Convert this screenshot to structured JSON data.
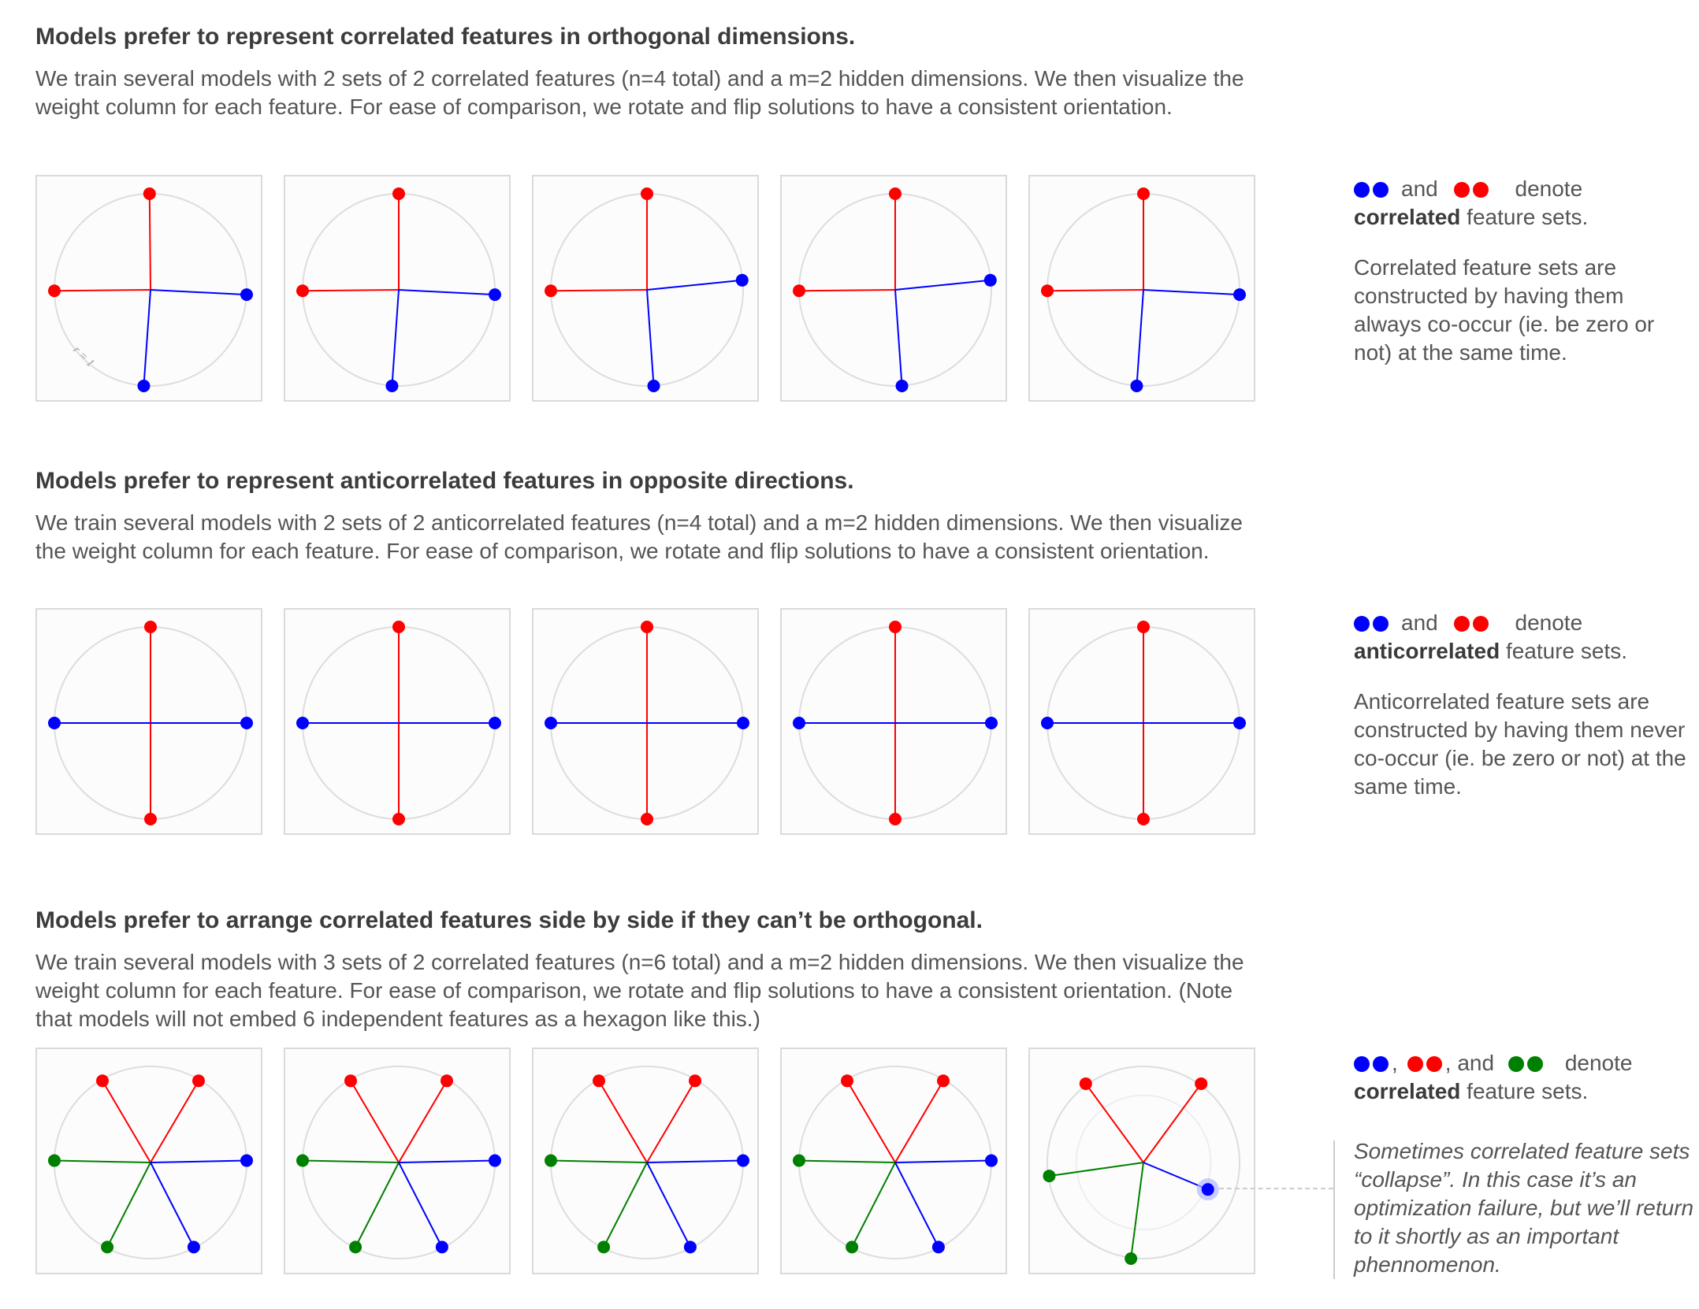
{
  "colors": {
    "blue": "#0000ff",
    "red": "#ff0000",
    "green": "#008000",
    "circle": "#dddddd"
  },
  "sections": [
    {
      "title": "Models prefer to represent correlated features in orthogonal dimensions.",
      "description": "We train several models with 2 sets of 2 correlated features (n=4 total) and a m=2 hidden dimensions. We then visualize the weight column for each feature. For ease of comparison, we rotate and flip solutions to have a consistent orientation.",
      "circle_label": "r = 1",
      "note": {
        "sep1": "and",
        "sep2": "denote",
        "bold": "correlated",
        "rest": " feature sets.",
        "paragraph": "Correlated feature sets are constructed by having them always co-occur (ie. be zero or not) at the same time."
      }
    },
    {
      "title": "Models prefer to represent anticorrelated features in opposite directions.",
      "description": "We train several models with 2 sets of 2 anticorrelated features (n=4 total) and a m=2 hidden dimensions. We then visualize the weight column for each feature. For ease of comparison, we rotate and flip solutions to have a consistent orientation.",
      "note": {
        "sep1": "and",
        "sep2": "denote",
        "bold": "anticorrelated",
        "rest": " feature sets.",
        "paragraph": "Anticorrelated feature sets are constructed by having them never co-occur (ie. be zero or not) at the same time."
      }
    },
    {
      "title": "Models prefer to arrange correlated features side by side if they can’t be orthogonal.",
      "description": "We train several models with 3 sets of 2 correlated features (n=6 total) and a m=2 hidden dimensions. We then visualize the weight column for each feature. For ease of comparison, we rotate and flip solutions to have a consistent orientation. (Note that models will not embed 6 independent features as a hexagon like this.)",
      "note": {
        "sep0": ",",
        "sep1": ", and",
        "sep2": "denote",
        "bold": "correlated",
        "rest": " feature sets.",
        "italic": "Sometimes correlated feature sets “collapse”. In this case it’s an optimization failure, but we’ll return to it shortly as an important phennomenon."
      }
    }
  ],
  "chart_data": [
    {
      "type": "scatter",
      "description_of": "section 1: 5 models, feature weight vectors in 2D, unit circle",
      "models": [
        [
          {
            "set": "red",
            "v": [
              -0.01,
              1.0
            ]
          },
          {
            "set": "red",
            "v": [
              -1.0,
              -0.01
            ]
          },
          {
            "set": "blue",
            "v": [
              1.0,
              -0.05
            ]
          },
          {
            "set": "blue",
            "v": [
              -0.07,
              -1.0
            ]
          }
        ],
        [
          {
            "set": "red",
            "v": [
              0.0,
              1.0
            ]
          },
          {
            "set": "red",
            "v": [
              -1.0,
              -0.01
            ]
          },
          {
            "set": "blue",
            "v": [
              1.0,
              -0.05
            ]
          },
          {
            "set": "blue",
            "v": [
              -0.07,
              -1.0
            ]
          }
        ],
        [
          {
            "set": "red",
            "v": [
              0.0,
              1.0
            ]
          },
          {
            "set": "red",
            "v": [
              -1.0,
              -0.01
            ]
          },
          {
            "set": "blue",
            "v": [
              0.99,
              0.1
            ]
          },
          {
            "set": "blue",
            "v": [
              0.07,
              -1.0
            ]
          }
        ],
        [
          {
            "set": "red",
            "v": [
              0.0,
              1.0
            ]
          },
          {
            "set": "red",
            "v": [
              -1.0,
              -0.01
            ]
          },
          {
            "set": "blue",
            "v": [
              0.99,
              0.1
            ]
          },
          {
            "set": "blue",
            "v": [
              0.07,
              -1.0
            ]
          }
        ],
        [
          {
            "set": "red",
            "v": [
              0.0,
              1.0
            ]
          },
          {
            "set": "red",
            "v": [
              -1.0,
              -0.01
            ]
          },
          {
            "set": "blue",
            "v": [
              1.0,
              -0.05
            ]
          },
          {
            "set": "blue",
            "v": [
              -0.07,
              -1.0
            ]
          }
        ]
      ]
    },
    {
      "type": "scatter",
      "description_of": "section 2: 5 models, anticorrelated features",
      "models": [
        [
          {
            "set": "red",
            "v": [
              0.0,
              1.0
            ]
          },
          {
            "set": "red",
            "v": [
              0.0,
              -1.0
            ]
          },
          {
            "set": "blue",
            "v": [
              -1.0,
              0.0
            ]
          },
          {
            "set": "blue",
            "v": [
              1.0,
              0.0
            ]
          }
        ],
        [
          {
            "set": "red",
            "v": [
              0.0,
              1.0
            ]
          },
          {
            "set": "red",
            "v": [
              0.0,
              -1.0
            ]
          },
          {
            "set": "blue",
            "v": [
              -1.0,
              0.0
            ]
          },
          {
            "set": "blue",
            "v": [
              1.0,
              0.0
            ]
          }
        ],
        [
          {
            "set": "red",
            "v": [
              0.0,
              1.0
            ]
          },
          {
            "set": "red",
            "v": [
              0.0,
              -1.0
            ]
          },
          {
            "set": "blue",
            "v": [
              -1.0,
              0.0
            ]
          },
          {
            "set": "blue",
            "v": [
              1.0,
              0.0
            ]
          }
        ],
        [
          {
            "set": "red",
            "v": [
              0.0,
              1.0
            ]
          },
          {
            "set": "red",
            "v": [
              0.0,
              -1.0
            ]
          },
          {
            "set": "blue",
            "v": [
              -1.0,
              0.0
            ]
          },
          {
            "set": "blue",
            "v": [
              1.0,
              0.0
            ]
          }
        ],
        [
          {
            "set": "red",
            "v": [
              0.0,
              1.0
            ]
          },
          {
            "set": "red",
            "v": [
              0.0,
              -1.0
            ]
          },
          {
            "set": "blue",
            "v": [
              -1.0,
              0.0
            ]
          },
          {
            "set": "blue",
            "v": [
              1.0,
              0.0
            ]
          }
        ]
      ]
    },
    {
      "type": "scatter",
      "description_of": "section 3: 5 models, 3 correlated sets",
      "models": [
        [
          {
            "set": "red",
            "v": [
              -0.5,
              0.85
            ]
          },
          {
            "set": "red",
            "v": [
              0.5,
              0.85
            ]
          },
          {
            "set": "green",
            "v": [
              -1.0,
              0.02
            ]
          },
          {
            "set": "green",
            "v": [
              -0.45,
              -0.88
            ]
          },
          {
            "set": "blue",
            "v": [
              1.0,
              0.02
            ]
          },
          {
            "set": "blue",
            "v": [
              0.45,
              -0.88
            ]
          }
        ],
        [
          {
            "set": "red",
            "v": [
              -0.5,
              0.85
            ]
          },
          {
            "set": "red",
            "v": [
              0.5,
              0.85
            ]
          },
          {
            "set": "green",
            "v": [
              -1.0,
              0.02
            ]
          },
          {
            "set": "green",
            "v": [
              -0.45,
              -0.88
            ]
          },
          {
            "set": "blue",
            "v": [
              1.0,
              0.02
            ]
          },
          {
            "set": "blue",
            "v": [
              0.45,
              -0.88
            ]
          }
        ],
        [
          {
            "set": "red",
            "v": [
              -0.5,
              0.85
            ]
          },
          {
            "set": "red",
            "v": [
              0.5,
              0.85
            ]
          },
          {
            "set": "green",
            "v": [
              -1.0,
              0.02
            ]
          },
          {
            "set": "green",
            "v": [
              -0.45,
              -0.88
            ]
          },
          {
            "set": "blue",
            "v": [
              1.0,
              0.02
            ]
          },
          {
            "set": "blue",
            "v": [
              0.45,
              -0.88
            ]
          }
        ],
        [
          {
            "set": "red",
            "v": [
              -0.5,
              0.85
            ]
          },
          {
            "set": "red",
            "v": [
              0.5,
              0.85
            ]
          },
          {
            "set": "green",
            "v": [
              -1.0,
              0.02
            ]
          },
          {
            "set": "green",
            "v": [
              -0.45,
              -0.88
            ]
          },
          {
            "set": "blue",
            "v": [
              1.0,
              0.02
            ]
          },
          {
            "set": "blue",
            "v": [
              0.45,
              -0.88
            ]
          }
        ],
        [
          {
            "set": "red",
            "v": [
              -0.6,
              0.82
            ]
          },
          {
            "set": "red",
            "v": [
              0.6,
              0.82
            ]
          },
          {
            "set": "green",
            "v": [
              -0.98,
              -0.14
            ]
          },
          {
            "set": "green",
            "v": [
              -0.13,
              -1.0
            ]
          },
          {
            "set": "blue",
            "v": [
              0.67,
              -0.28
            ],
            "highlight": true
          }
        ]
      ],
      "collapsed_model_inner_radius": 0.7
    }
  ]
}
